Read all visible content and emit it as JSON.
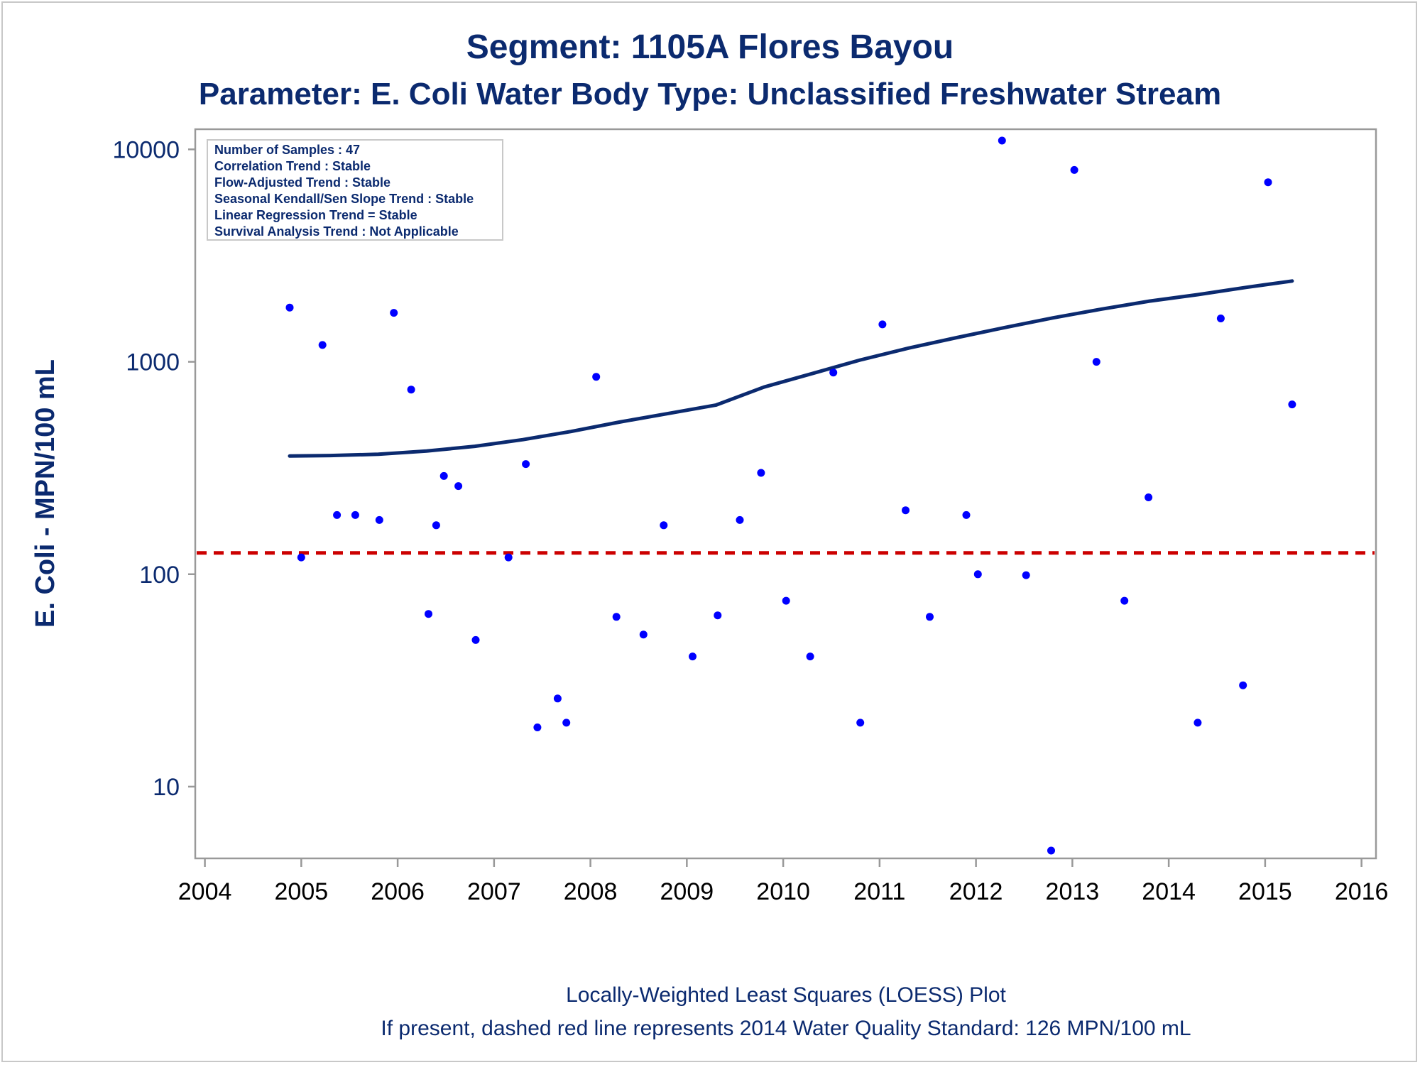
{
  "chart_data": {
    "type": "scatter",
    "title": "Segment: 1105A  Flores Bayou",
    "subtitle": "Parameter: E. Coli   Water Body Type: Unclassified Freshwater Stream",
    "ylabel": "E. Coli - MPN/100 mL",
    "yscale": "log",
    "ylim": [
      5,
      11000
    ],
    "xlim": [
      2003.9,
      2016.15
    ],
    "x_ticks": [
      "2004",
      "2005",
      "2006",
      "2007",
      "2008",
      "2009",
      "2010",
      "2011",
      "2012",
      "2013",
      "2014",
      "2015",
      "2016"
    ],
    "y_ticks": [
      "10",
      "100",
      "1000",
      "10000"
    ],
    "grid": false,
    "stats_box": {
      "placement": "top-left",
      "lines": [
        "Number of Samples : 47",
        "Correlation Trend : Stable",
        "Flow-Adjusted Trend : Stable",
        "Seasonal Kendall/Sen Slope Trend : Stable",
        "Linear Regression Trend = Stable",
        "Survival Analysis Trend : Not Applicable"
      ]
    },
    "footnotes": [
      "Locally-Weighted Least Squares (LOESS) Plot",
      "If present, dashed red line represents 2014 Water Quality Standard: 126 MPN/100 mL"
    ],
    "standard_line": {
      "value": 126,
      "color": "#cc0000",
      "style": "dashed"
    },
    "colors": {
      "points": "#0000ff",
      "loess": "#0b2a6f",
      "text": "#0b2a6f",
      "axis": "#999999"
    },
    "points": [
      {
        "x": 2004.88,
        "y": 1800
      },
      {
        "x": 2005.0,
        "y": 120
      },
      {
        "x": 2005.22,
        "y": 1200
      },
      {
        "x": 2005.37,
        "y": 190
      },
      {
        "x": 2005.56,
        "y": 190
      },
      {
        "x": 2005.81,
        "y": 180
      },
      {
        "x": 2005.96,
        "y": 1700
      },
      {
        "x": 2006.14,
        "y": 740
      },
      {
        "x": 2006.32,
        "y": 65
      },
      {
        "x": 2006.4,
        "y": 170
      },
      {
        "x": 2006.48,
        "y": 290
      },
      {
        "x": 2006.63,
        "y": 260
      },
      {
        "x": 2006.81,
        "y": 49
      },
      {
        "x": 2007.15,
        "y": 120
      },
      {
        "x": 2007.33,
        "y": 330
      },
      {
        "x": 2007.45,
        "y": 19
      },
      {
        "x": 2007.66,
        "y": 26
      },
      {
        "x": 2007.75,
        "y": 20
      },
      {
        "x": 2008.06,
        "y": 850
      },
      {
        "x": 2008.27,
        "y": 63
      },
      {
        "x": 2008.55,
        "y": 52
      },
      {
        "x": 2008.76,
        "y": 170
      },
      {
        "x": 2009.06,
        "y": 41
      },
      {
        "x": 2009.32,
        "y": 64
      },
      {
        "x": 2009.55,
        "y": 180
      },
      {
        "x": 2009.77,
        "y": 300
      },
      {
        "x": 2010.03,
        "y": 75
      },
      {
        "x": 2010.28,
        "y": 41
      },
      {
        "x": 2010.52,
        "y": 890
      },
      {
        "x": 2010.8,
        "y": 20
      },
      {
        "x": 2011.03,
        "y": 1500
      },
      {
        "x": 2011.27,
        "y": 200
      },
      {
        "x": 2011.52,
        "y": 63
      },
      {
        "x": 2011.9,
        "y": 190
      },
      {
        "x": 2012.02,
        "y": 100
      },
      {
        "x": 2012.27,
        "y": 11000
      },
      {
        "x": 2012.52,
        "y": 99
      },
      {
        "x": 2012.78,
        "y": 5
      },
      {
        "x": 2013.02,
        "y": 8000
      },
      {
        "x": 2013.25,
        "y": 1000
      },
      {
        "x": 2013.54,
        "y": 75
      },
      {
        "x": 2013.79,
        "y": 230
      },
      {
        "x": 2014.3,
        "y": 20
      },
      {
        "x": 2014.54,
        "y": 1600
      },
      {
        "x": 2014.77,
        "y": 30
      },
      {
        "x": 2015.03,
        "y": 7000
      },
      {
        "x": 2015.28,
        "y": 630
      }
    ],
    "loess": [
      {
        "x": 2004.88,
        "y": 360
      },
      {
        "x": 2005.3,
        "y": 362
      },
      {
        "x": 2005.8,
        "y": 367
      },
      {
        "x": 2006.3,
        "y": 380
      },
      {
        "x": 2006.8,
        "y": 400
      },
      {
        "x": 2007.3,
        "y": 430
      },
      {
        "x": 2007.8,
        "y": 470
      },
      {
        "x": 2008.3,
        "y": 520
      },
      {
        "x": 2008.8,
        "y": 570
      },
      {
        "x": 2009.3,
        "y": 625
      },
      {
        "x": 2009.8,
        "y": 760
      },
      {
        "x": 2010.3,
        "y": 880
      },
      {
        "x": 2010.8,
        "y": 1020
      },
      {
        "x": 2011.3,
        "y": 1160
      },
      {
        "x": 2011.8,
        "y": 1300
      },
      {
        "x": 2012.3,
        "y": 1450
      },
      {
        "x": 2012.8,
        "y": 1610
      },
      {
        "x": 2013.3,
        "y": 1770
      },
      {
        "x": 2013.8,
        "y": 1930
      },
      {
        "x": 2014.3,
        "y": 2070
      },
      {
        "x": 2014.8,
        "y": 2240
      },
      {
        "x": 2015.28,
        "y": 2400
      }
    ]
  }
}
